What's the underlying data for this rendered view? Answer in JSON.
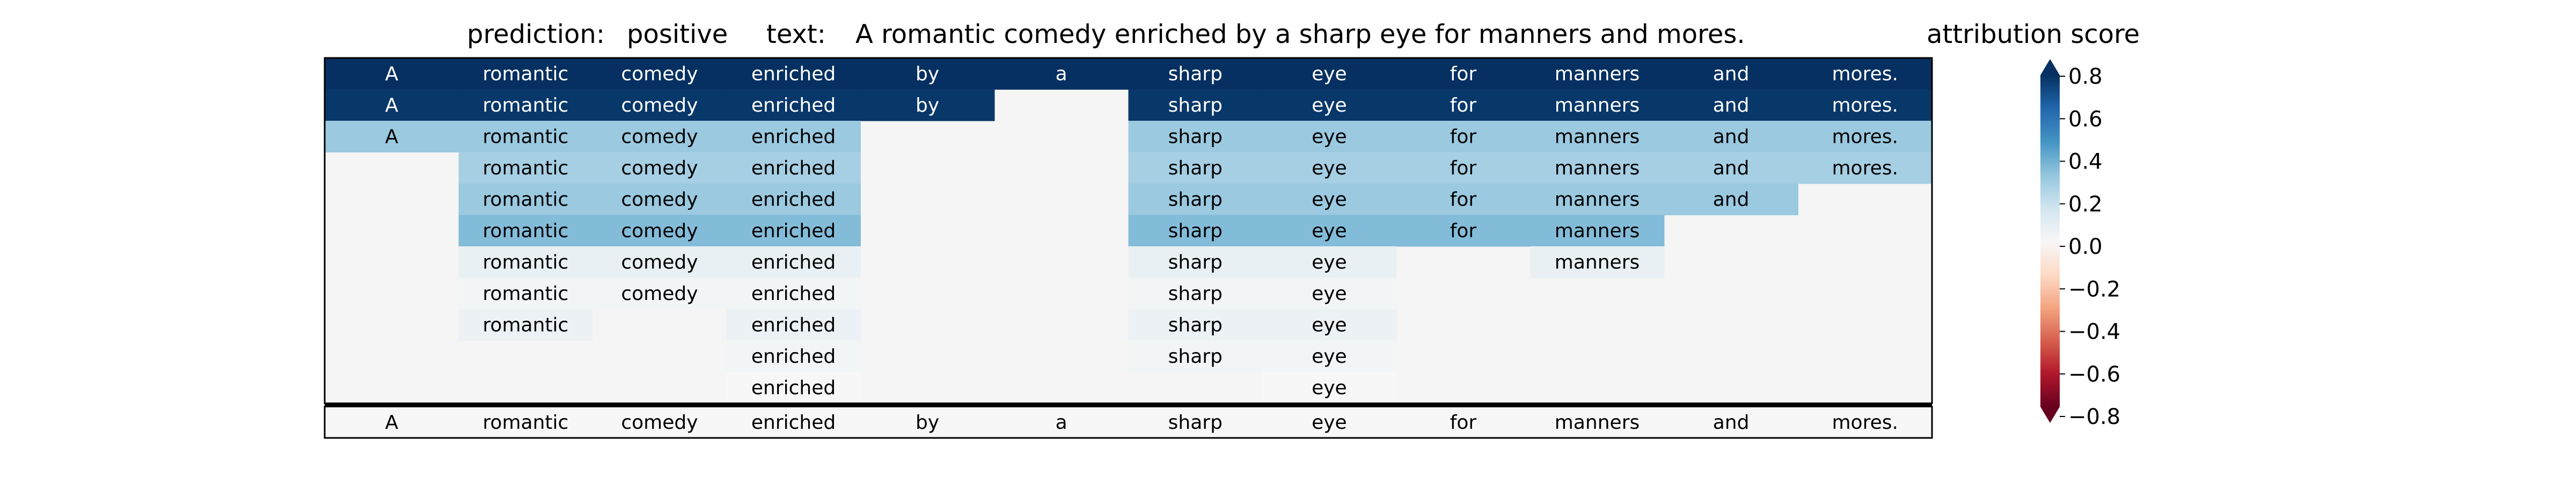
{
  "header": {
    "prediction_label": "prediction:",
    "prediction_value": "positive",
    "text_label": "text:",
    "text_value": "A romantic comedy enriched by a sharp eye for manners and mores.",
    "colorbar_title": "attribution score"
  },
  "chart_data": {
    "type": "heatmap",
    "tokens": [
      "A",
      "romantic",
      "comedy",
      "enriched",
      "by",
      "a",
      "sharp",
      "eye",
      "for",
      "manners",
      "and",
      "mores."
    ],
    "rows": [
      {
        "present": [
          1,
          1,
          1,
          1,
          1,
          1,
          1,
          1,
          1,
          1,
          1,
          1
        ],
        "score": 0.8
      },
      {
        "present": [
          1,
          1,
          1,
          1,
          1,
          0,
          1,
          1,
          1,
          1,
          1,
          1
        ],
        "score": 0.78
      },
      {
        "present": [
          1,
          1,
          1,
          1,
          0,
          0,
          1,
          1,
          1,
          1,
          1,
          1
        ],
        "score": 0.3
      },
      {
        "present": [
          0,
          1,
          1,
          1,
          0,
          0,
          1,
          1,
          1,
          1,
          1,
          1
        ],
        "score": 0.27
      },
      {
        "present": [
          0,
          1,
          1,
          1,
          0,
          0,
          1,
          1,
          1,
          1,
          1,
          0
        ],
        "score": 0.3
      },
      {
        "present": [
          0,
          1,
          1,
          1,
          0,
          0,
          1,
          1,
          1,
          1,
          0,
          0
        ],
        "score": 0.35
      },
      {
        "present": [
          0,
          1,
          1,
          1,
          0,
          0,
          1,
          1,
          0,
          1,
          0,
          0
        ],
        "score": 0.06
      },
      {
        "present": [
          0,
          1,
          1,
          1,
          0,
          0,
          1,
          1,
          0,
          0,
          0,
          0
        ],
        "score": 0.02
      },
      {
        "present": [
          0,
          1,
          0,
          1,
          0,
          0,
          1,
          1,
          0,
          0,
          0,
          0
        ],
        "score": 0.05
      },
      {
        "present": [
          0,
          0,
          0,
          1,
          0,
          0,
          1,
          1,
          0,
          0,
          0,
          0
        ],
        "score": 0.02
      },
      {
        "present": [
          0,
          0,
          0,
          1,
          0,
          0,
          0,
          1,
          0,
          0,
          0,
          0
        ],
        "score": 0.0
      }
    ],
    "baseline_score": 0.0,
    "colorbar": {
      "cmap": "RdBu",
      "vmin": -0.8,
      "vmax": 0.8,
      "ticks": [
        -0.8,
        -0.6,
        -0.4,
        -0.2,
        0.0,
        0.2,
        0.4,
        0.6,
        0.8
      ],
      "tick_labels": [
        "−0.8",
        "−0.6",
        "−0.4",
        "−0.2",
        "0.0",
        "0.2",
        "0.4",
        "0.6",
        "0.8"
      ]
    }
  }
}
